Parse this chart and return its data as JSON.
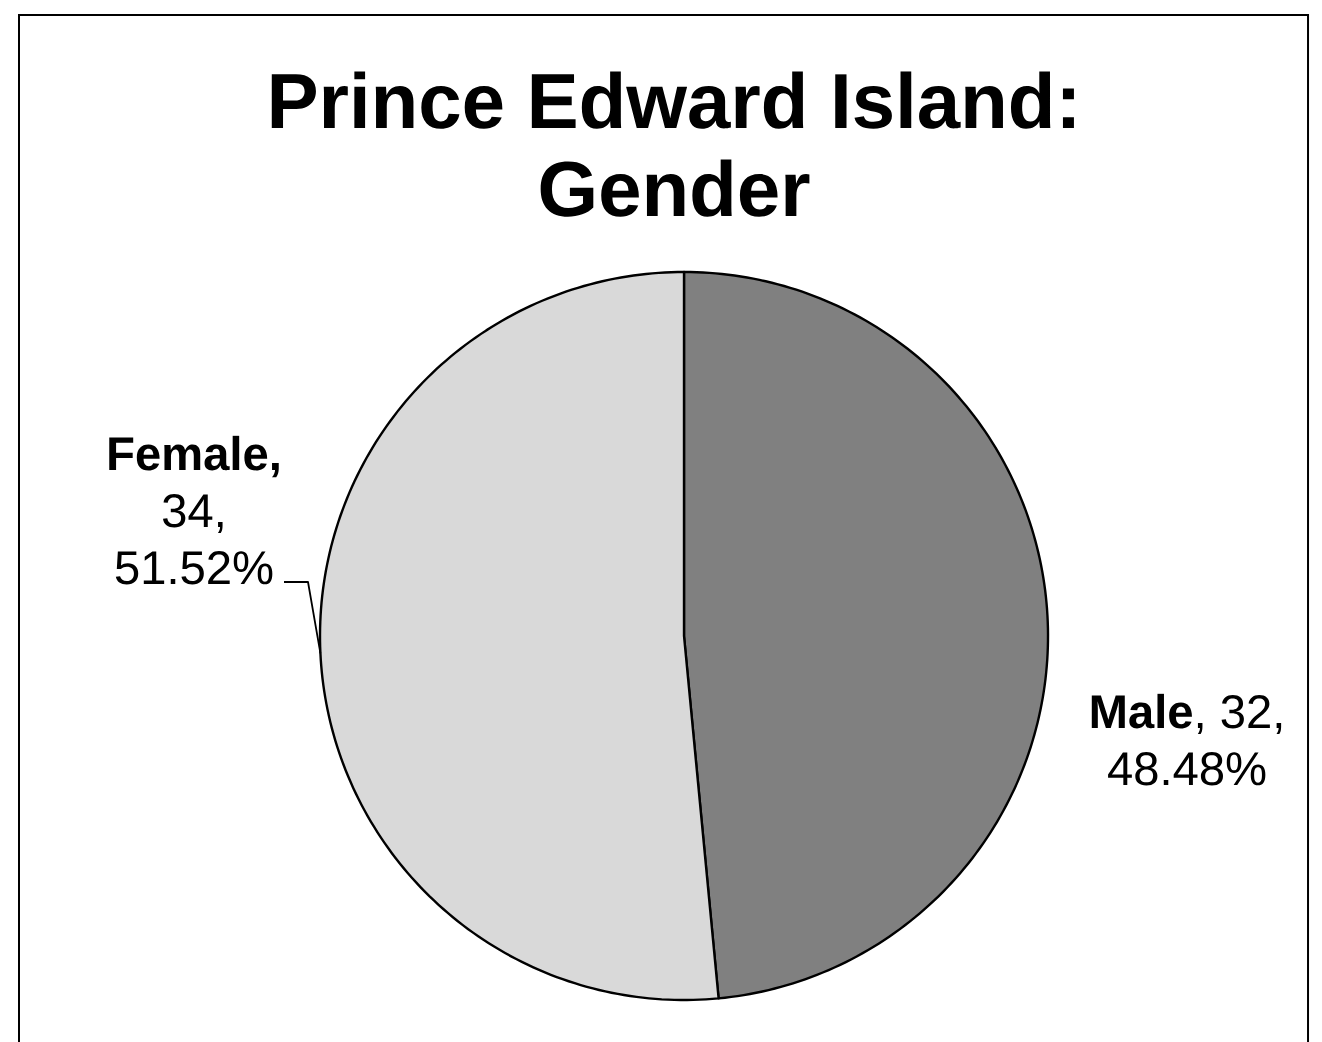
{
  "chart_data": {
    "type": "pie",
    "title": "Prince Edward Island: Gender",
    "categories": [
      null,
      null
    ],
    "values": [
      32,
      34
    ],
    "colors": [
      "#808080",
      "#d9d9d9"
    ],
    "value_labels": [
      "**Male**, 32, 48.48%",
      "**Female,** 34, 51.52%"
    ]
  }
}
